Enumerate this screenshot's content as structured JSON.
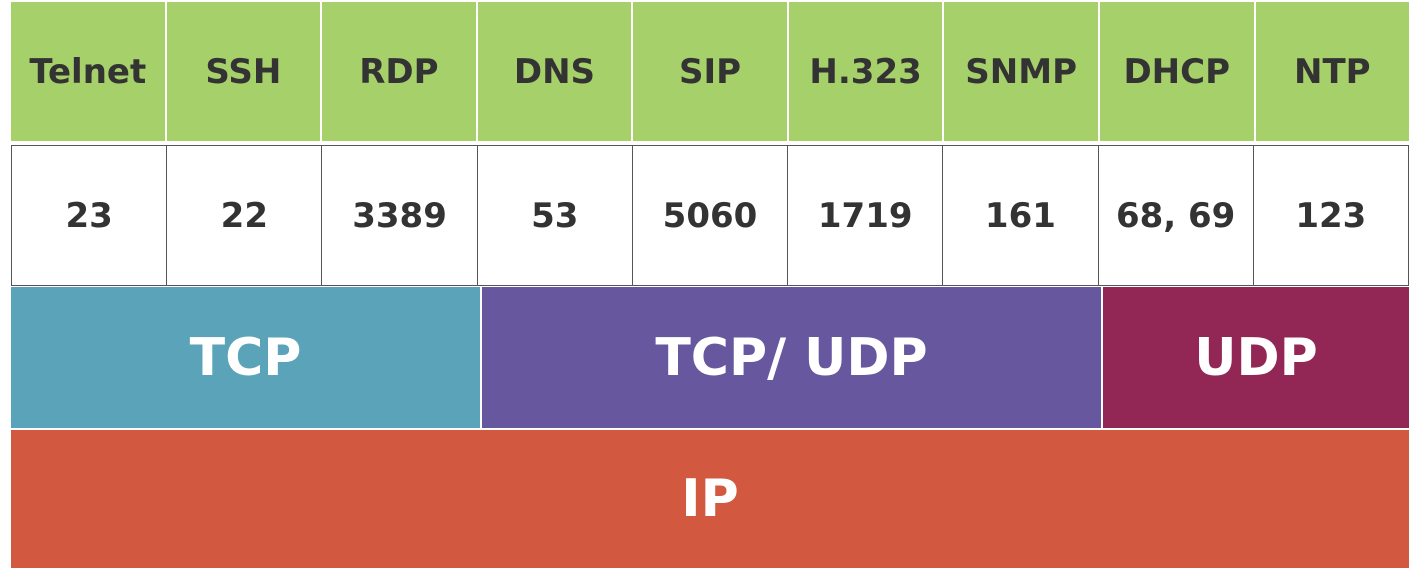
{
  "protocols": [
    {
      "name": "Telnet",
      "port": "23"
    },
    {
      "name": "SSH",
      "port": "22"
    },
    {
      "name": "RDP",
      "port": "3389"
    },
    {
      "name": "DNS",
      "port": "53"
    },
    {
      "name": "SIP",
      "port": "5060"
    },
    {
      "name": "H.323",
      "port": "1719"
    },
    {
      "name": "SNMP",
      "port": "161"
    },
    {
      "name": "DHCP",
      "port": "68, 69"
    },
    {
      "name": "NTP",
      "port": "123"
    }
  ],
  "transport": [
    {
      "label": "TCP",
      "color": "#5ba3b8"
    },
    {
      "label": "TCP/ UDP",
      "color": "#66579f"
    },
    {
      "label": "UDP",
      "color": "#922756"
    }
  ],
  "network": {
    "label": "IP",
    "color": "#d25840"
  },
  "colors": {
    "protocol_header": "#a6d06a",
    "text_dark": "#333333",
    "text_light": "#ffffff"
  }
}
